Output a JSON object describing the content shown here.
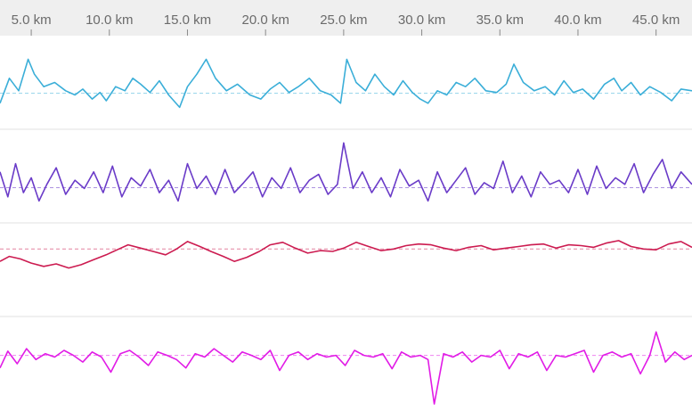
{
  "chart_data": {
    "type": "line",
    "title": "",
    "xlabel": "",
    "grid": false,
    "legend": "none",
    "x_unit": "km",
    "xlim": [
      3.0,
      47.3
    ],
    "x_ticks": [
      {
        "value": 5,
        "label": "5.0 km"
      },
      {
        "value": 10,
        "label": "10.0 km"
      },
      {
        "value": 15,
        "label": "15.0 km"
      },
      {
        "value": 20,
        "label": "20.0 km"
      },
      {
        "value": 25,
        "label": "25.0 km"
      },
      {
        "value": 30,
        "label": "30.0 km"
      },
      {
        "value": 35,
        "label": "35.0 km"
      },
      {
        "value": 40,
        "label": "40.0 km"
      },
      {
        "value": 45,
        "label": "45.0 km"
      }
    ],
    "series": [
      {
        "color": "#3aaed8",
        "ylim": [
          0,
          100
        ],
        "reference": 37,
        "x": [
          3.0,
          3.6,
          4.2,
          4.8,
          5.2,
          5.8,
          6.5,
          7.2,
          7.8,
          8.3,
          8.9,
          9.4,
          9.8,
          10.4,
          11.0,
          11.5,
          12.0,
          12.6,
          13.2,
          13.8,
          14.5,
          15.0,
          15.6,
          16.2,
          16.8,
          17.5,
          18.2,
          19.0,
          19.7,
          20.3,
          20.9,
          21.5,
          22.1,
          22.8,
          23.5,
          24.2,
          24.8,
          25.2,
          25.8,
          26.4,
          27.0,
          27.6,
          28.2,
          28.8,
          29.4,
          29.9,
          30.4,
          31.0,
          31.6,
          32.2,
          32.8,
          33.4,
          34.1,
          34.8,
          35.4,
          35.9,
          36.5,
          37.2,
          37.9,
          38.5,
          39.1,
          39.7,
          40.3,
          41.0,
          41.7,
          42.3,
          42.8,
          43.4,
          44.0,
          44.6,
          45.3,
          46.0,
          46.6,
          47.3
        ],
        "values": [
          25,
          55,
          40,
          78,
          60,
          45,
          50,
          40,
          35,
          42,
          30,
          38,
          28,
          45,
          40,
          55,
          48,
          38,
          52,
          35,
          20,
          45,
          60,
          78,
          55,
          40,
          48,
          35,
          30,
          42,
          50,
          38,
          45,
          55,
          40,
          35,
          25,
          78,
          50,
          40,
          60,
          45,
          35,
          52,
          38,
          30,
          25,
          40,
          35,
          50,
          45,
          55,
          40,
          38,
          48,
          72,
          50,
          40,
          45,
          35,
          52,
          38,
          42,
          30,
          48,
          55,
          40,
          50,
          35,
          45,
          38,
          28,
          42,
          40
        ]
      },
      {
        "color": "#6a3bc8",
        "ylim": [
          0,
          100
        ],
        "reference": 36,
        "x": [
          3.0,
          3.5,
          4.0,
          4.5,
          5.0,
          5.5,
          6.0,
          6.6,
          7.2,
          7.8,
          8.4,
          9.0,
          9.6,
          10.2,
          10.8,
          11.4,
          12.0,
          12.6,
          13.2,
          13.8,
          14.4,
          15.0,
          15.6,
          16.2,
          16.8,
          17.4,
          18.0,
          18.6,
          19.2,
          19.8,
          20.4,
          21.0,
          21.6,
          22.2,
          22.8,
          23.4,
          24.0,
          24.6,
          25.0,
          25.6,
          26.2,
          26.8,
          27.4,
          28.0,
          28.6,
          29.2,
          29.8,
          30.4,
          31.0,
          31.6,
          32.2,
          32.8,
          33.4,
          34.0,
          34.6,
          35.2,
          35.8,
          36.4,
          37.0,
          37.6,
          38.2,
          38.8,
          39.4,
          40.0,
          40.6,
          41.2,
          41.8,
          42.4,
          43.0,
          43.6,
          44.2,
          44.8,
          45.4,
          46.0,
          46.6,
          47.3
        ],
        "values": [
          55,
          25,
          65,
          30,
          48,
          20,
          40,
          60,
          28,
          45,
          35,
          55,
          30,
          62,
          25,
          48,
          38,
          58,
          30,
          45,
          20,
          65,
          35,
          50,
          28,
          58,
          30,
          42,
          55,
          25,
          48,
          35,
          60,
          30,
          45,
          52,
          28,
          40,
          90,
          35,
          55,
          30,
          48,
          25,
          58,
          38,
          45,
          20,
          55,
          30,
          45,
          60,
          28,
          42,
          35,
          68,
          30,
          50,
          25,
          55,
          40,
          45,
          30,
          58,
          28,
          62,
          35,
          48,
          40,
          65,
          30,
          52,
          70,
          35,
          55,
          40
        ]
      },
      {
        "color": "#cc1b50",
        "ylim": [
          0,
          100
        ],
        "reference": 75,
        "x": [
          3.0,
          3.6,
          4.3,
          5.0,
          5.8,
          6.6,
          7.4,
          8.2,
          9.0,
          9.8,
          10.5,
          11.2,
          12.0,
          12.8,
          13.6,
          14.3,
          15.0,
          15.8,
          16.5,
          17.3,
          18.0,
          18.8,
          19.6,
          20.3,
          21.1,
          21.9,
          22.7,
          23.5,
          24.3,
          25.0,
          25.8,
          26.6,
          27.4,
          28.2,
          29.0,
          29.8,
          30.6,
          31.4,
          32.2,
          33.0,
          33.8,
          34.6,
          35.4,
          36.2,
          37.0,
          37.8,
          38.6,
          39.4,
          40.2,
          41.0,
          41.8,
          42.6,
          43.4,
          44.2,
          45.0,
          45.8,
          46.6,
          47.3
        ],
        "values": [
          60,
          66,
          63,
          58,
          54,
          57,
          52,
          56,
          62,
          68,
          74,
          80,
          76,
          72,
          68,
          75,
          84,
          78,
          72,
          66,
          60,
          65,
          72,
          80,
          83,
          76,
          70,
          73,
          72,
          76,
          83,
          78,
          73,
          75,
          79,
          81,
          80,
          76,
          73,
          77,
          79,
          74,
          76,
          78,
          80,
          81,
          76,
          80,
          79,
          77,
          82,
          85,
          78,
          75,
          74,
          81,
          84,
          77
        ]
      },
      {
        "color": "#e11be6",
        "ylim": [
          0,
          100
        ],
        "reference": 60,
        "x": [
          3.0,
          3.5,
          4.1,
          4.7,
          5.3,
          5.9,
          6.5,
          7.1,
          7.7,
          8.3,
          8.9,
          9.5,
          10.1,
          10.7,
          11.3,
          11.9,
          12.5,
          13.1,
          13.7,
          14.3,
          14.9,
          15.5,
          16.1,
          16.7,
          17.3,
          17.9,
          18.5,
          19.1,
          19.7,
          20.3,
          20.9,
          21.5,
          22.1,
          22.7,
          23.3,
          23.9,
          24.5,
          25.1,
          25.7,
          26.3,
          26.9,
          27.5,
          28.1,
          28.7,
          29.3,
          29.9,
          30.4,
          30.8,
          31.4,
          32.0,
          32.6,
          33.2,
          33.8,
          34.4,
          35.0,
          35.6,
          36.2,
          36.8,
          37.4,
          38.0,
          38.6,
          39.2,
          39.8,
          40.4,
          41.0,
          41.6,
          42.2,
          42.8,
          43.4,
          44.0,
          44.6,
          45.0,
          45.6,
          46.2,
          46.8,
          47.3
        ],
        "values": [
          45,
          65,
          50,
          68,
          55,
          62,
          58,
          66,
          60,
          52,
          64,
          58,
          40,
          62,
          66,
          58,
          48,
          64,
          60,
          55,
          45,
          62,
          58,
          68,
          60,
          52,
          64,
          60,
          55,
          66,
          42,
          60,
          64,
          55,
          62,
          58,
          60,
          48,
          66,
          60,
          58,
          62,
          44,
          64,
          58,
          60,
          55,
          2,
          62,
          58,
          64,
          52,
          60,
          58,
          66,
          44,
          62,
          58,
          64,
          42,
          60,
          58,
          62,
          66,
          40,
          60,
          64,
          58,
          62,
          38,
          60,
          88,
          52,
          64,
          55,
          60
        ]
      }
    ]
  }
}
